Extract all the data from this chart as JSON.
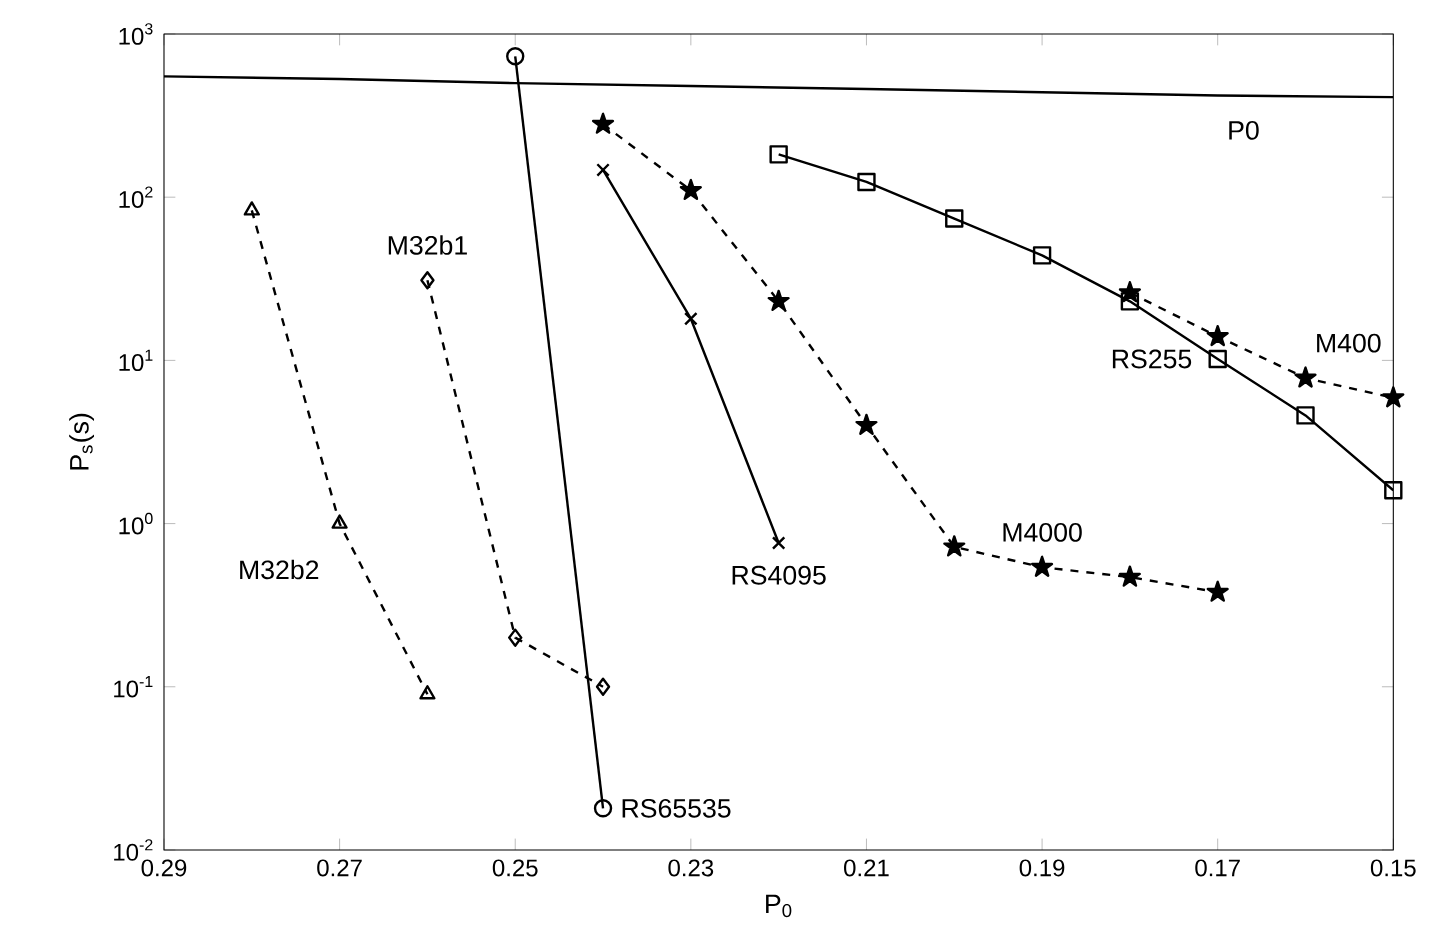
{
  "chart_data": {
    "type": "line",
    "log": "y",
    "xlabel": "P$_{0}$",
    "ylabel": "P$_{s}$(s)",
    "xlim": [
      0.29,
      0.15
    ],
    "xticks": [
      {
        "value": 0.29,
        "label": "0.29"
      },
      {
        "value": 0.27,
        "label": "0.27"
      },
      {
        "value": 0.25,
        "label": "0.25"
      },
      {
        "value": 0.23,
        "label": "0.23"
      },
      {
        "value": 0.21,
        "label": "0.21"
      },
      {
        "value": 0.19,
        "label": "0.19"
      },
      {
        "value": 0.17,
        "label": "0.17"
      },
      {
        "value": 0.15,
        "label": "0.15"
      }
    ],
    "ylim": [
      0.01,
      1000
    ],
    "yticks": [
      {
        "value": 0.01,
        "label": "10$^{-2}$"
      },
      {
        "value": 0.1,
        "label": "10$^{-1}$"
      },
      {
        "value": 1,
        "label": "10$^{0}$"
      },
      {
        "value": 10,
        "label": "10$^{1}$"
      },
      {
        "value": 100,
        "label": "10$^{2}$"
      },
      {
        "value": 1000,
        "label": "10$^{3}$"
      }
    ],
    "series": [
      {
        "name": "P0",
        "color": "#000000",
        "marker": "none",
        "line_style": "solid",
        "x": [
          0.29,
          0.27,
          0.25,
          0.23,
          0.21,
          0.19,
          0.17,
          0.15
        ],
        "values": [
          550,
          530,
          500,
          480,
          460,
          440,
          420,
          410
        ]
      },
      {
        "name": "M32b2",
        "color": "#000000",
        "marker": "triangle",
        "line_style": "dashed",
        "x": [
          0.28,
          0.27,
          0.26
        ],
        "values": [
          83,
          1.0,
          0.09
        ]
      },
      {
        "name": "M32b1",
        "color": "#000000",
        "marker": "diamond",
        "line_style": "dashed",
        "x": [
          0.26,
          0.25,
          0.24
        ],
        "values": [
          31,
          0.2,
          0.1
        ]
      },
      {
        "name": "RS65535",
        "color": "#000000",
        "marker": "circle",
        "line_style": "solid",
        "x": [
          0.25,
          0.24
        ],
        "values": [
          730,
          0.018
        ]
      },
      {
        "name": "RS4095",
        "color": "#000000",
        "marker": "cross",
        "line_style": "solid",
        "x": [
          0.24,
          0.23,
          0.22
        ],
        "values": [
          147,
          18,
          0.76
        ]
      },
      {
        "name": "M4000",
        "color": "#000000",
        "marker": "star",
        "line_style": "dashed",
        "x": [
          0.24,
          0.23,
          0.22,
          0.21,
          0.2,
          0.19,
          0.18,
          0.17
        ],
        "values": [
          280,
          110,
          23,
          4,
          0.72,
          0.54,
          0.47,
          0.38
        ]
      },
      {
        "name": "RS255",
        "color": "#000000",
        "marker": "square",
        "line_style": "solid",
        "x": [
          0.22,
          0.21,
          0.2,
          0.19,
          0.18,
          0.17,
          0.16,
          0.15
        ],
        "values": [
          183,
          124,
          74,
          44,
          23,
          10.2,
          4.6,
          1.6
        ]
      },
      {
        "name": "M400",
        "color": "#000000",
        "marker": "star",
        "line_style": "dashed",
        "x": [
          0.18,
          0.17,
          0.16,
          0.15
        ],
        "values": [
          26,
          14,
          7.8,
          5.9
        ]
      }
    ]
  }
}
